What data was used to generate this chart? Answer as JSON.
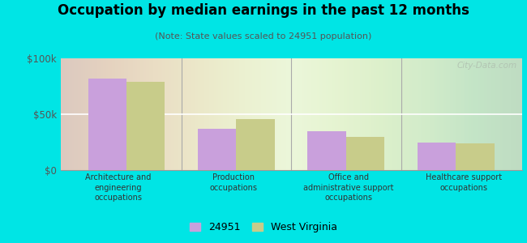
{
  "title": "Occupation by median earnings in the past 12 months",
  "subtitle": "(Note: State values scaled to 24951 population)",
  "categories": [
    "Architecture and\nengineering\noccupations",
    "Production\noccupations",
    "Office and\nadministrative support\noccupations",
    "Healthcare support\noccupations"
  ],
  "values_city": [
    82000,
    37000,
    35000,
    25000
  ],
  "values_state": [
    79000,
    46000,
    30000,
    24000
  ],
  "color_city": "#c9a0dc",
  "color_state": "#c8cc8a",
  "legend_city": "24951",
  "legend_state": "West Virginia",
  "ylim": [
    0,
    100000
  ],
  "yticks": [
    0,
    50000,
    100000
  ],
  "ytick_labels": [
    "$0",
    "$50k",
    "$100k"
  ],
  "plot_bg_left": "#d4eecc",
  "plot_bg_right": "#f5faf0",
  "outer_background": "#00e5e5",
  "bar_width": 0.35,
  "title_fontsize": 12,
  "subtitle_fontsize": 8,
  "watermark": "City-Data.com"
}
